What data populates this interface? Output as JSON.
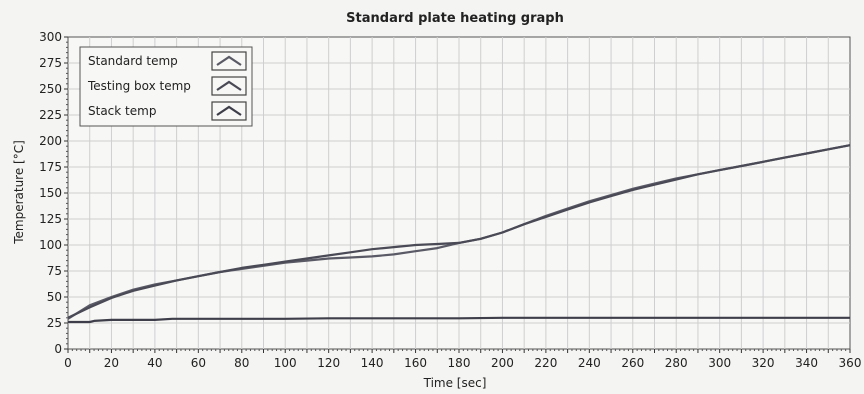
{
  "chart_data": {
    "type": "line",
    "title": "Standard plate heating graph",
    "xlabel": "Time [sec]",
    "ylabel": "Temperature [°C]",
    "xlim": [
      0,
      360
    ],
    "ylim": [
      0,
      300
    ],
    "x_ticks": [
      "0",
      "10",
      "20",
      "30",
      "40",
      "50",
      "60",
      "70",
      "80",
      "90",
      "100",
      "110",
      "120",
      "130",
      "140",
      "150",
      "160",
      "170",
      "180",
      "190",
      "200",
      "210",
      "220",
      "230",
      "240",
      "250",
      "260",
      "270",
      "280",
      "290",
      "300",
      "310",
      "320",
      "330",
      "340",
      "350",
      "360"
    ],
    "x_tick_labels_shown": [
      "0",
      "20",
      "40",
      "60",
      "80",
      "100",
      "120",
      "140",
      "160",
      "180",
      "200",
      "220",
      "240",
      "260",
      "280",
      "300",
      "320",
      "340",
      "360"
    ],
    "y_ticks": [
      "0",
      "25",
      "50",
      "75",
      "100",
      "125",
      "150",
      "175",
      "200",
      "225",
      "250",
      "275",
      "300"
    ],
    "grid": true,
    "legend_position": "top-left",
    "series": [
      {
        "name": "Standard temp",
        "color": "#5a5a66",
        "x": [
          0,
          10,
          20,
          30,
          40,
          50,
          60,
          70,
          80,
          90,
          100,
          110,
          120,
          130,
          140,
          150,
          160,
          170,
          180,
          190,
          200,
          210,
          220,
          230,
          240,
          250,
          260,
          270,
          280,
          290,
          300,
          310,
          320,
          330,
          340,
          350,
          360
        ],
        "y": [
          29,
          42,
          50,
          57,
          62,
          66,
          70,
          74,
          77,
          80,
          83,
          85,
          87,
          88,
          89,
          91,
          94,
          97,
          102,
          106,
          112,
          120,
          128,
          135,
          142,
          148,
          154,
          159,
          164,
          168,
          172,
          176,
          180,
          184,
          188,
          192,
          196
        ]
      },
      {
        "name": "Testing box temp",
        "color": "#4a4a56",
        "x": [
          0,
          10,
          20,
          30,
          40,
          50,
          60,
          70,
          80,
          90,
          100,
          110,
          120,
          130,
          140,
          150,
          160,
          170,
          180,
          190,
          200,
          210,
          220,
          230,
          240,
          250,
          260,
          270,
          280,
          290,
          300,
          310,
          320,
          330,
          340,
          350,
          360
        ],
        "y": [
          30,
          40,
          49,
          56,
          61,
          66,
          70,
          74,
          78,
          81,
          84,
          87,
          90,
          93,
          96,
          98,
          100,
          101,
          102,
          106,
          112,
          120,
          127,
          134,
          141,
          147,
          153,
          158,
          163,
          168,
          172,
          176,
          180,
          184,
          188,
          192,
          196
        ]
      },
      {
        "name": "Stack temp",
        "color": "#3e3e4a",
        "x": [
          0,
          10,
          12,
          20,
          30,
          40,
          48,
          60,
          80,
          100,
          120,
          150,
          180,
          200,
          240,
          280,
          320,
          360
        ],
        "y": [
          26,
          26,
          27,
          28,
          28,
          28,
          29,
          29,
          29,
          29,
          29.5,
          29.5,
          29.5,
          30,
          30,
          30,
          30,
          30
        ]
      }
    ]
  }
}
